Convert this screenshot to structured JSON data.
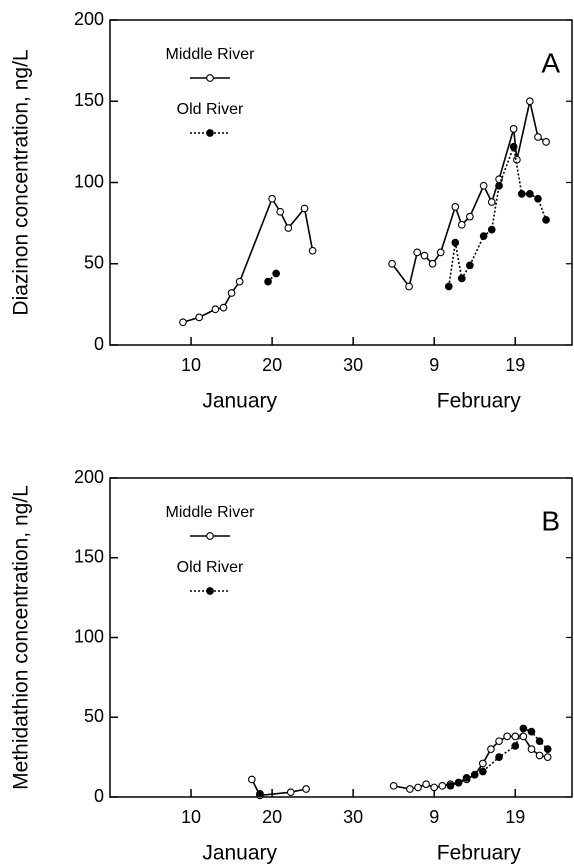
{
  "chart_data": [
    {
      "type": "line",
      "panel_label": "A",
      "ylabel": "Diazinon concentration, ng/L",
      "xlim": [
        0,
        57
      ],
      "ylim": [
        0,
        200
      ],
      "xticks": [
        10,
        20,
        30,
        {
          "value": 40,
          "label": "9"
        },
        {
          "value": 50,
          "label": "19"
        }
      ],
      "yticks": [
        0,
        50,
        100,
        150,
        200
      ],
      "months": [
        {
          "label": "January",
          "start": 1,
          "end": 31
        },
        {
          "label": "February",
          "start": 32,
          "end": 59
        }
      ],
      "legend": "upper-left",
      "series": [
        {
          "name": "Middle River",
          "color": "#000000",
          "line_style": "solid",
          "marker": "open",
          "x": [
            9,
            11,
            13,
            14,
            15,
            16,
            20,
            21,
            22,
            24,
            25,
            null,
            34.8,
            36.9,
            37.9,
            38.8,
            39.8,
            40.8,
            42.6,
            43.4,
            44.4,
            46.1,
            47.1,
            48,
            49.8,
            50.2,
            51.8,
            52.8,
            53.8
          ],
          "values": [
            14,
            17,
            22,
            23,
            32,
            39,
            90,
            82,
            72,
            84,
            58,
            null,
            50,
            36,
            57,
            55,
            50,
            57,
            85,
            74,
            79,
            98,
            88,
            102,
            133,
            114,
            150,
            128,
            125
          ]
        },
        {
          "name": "Old River",
          "color": "#000000",
          "line_style": "dotted",
          "marker": "filled",
          "x": [
            19.5,
            20.5,
            null,
            41.8,
            42.6,
            43.4,
            44.4,
            46.1,
            47.1,
            48,
            49.8,
            50.8,
            51.8,
            52.8,
            53.8
          ],
          "values": [
            39,
            44,
            null,
            36,
            63,
            41,
            49,
            67,
            71,
            98,
            122,
            93,
            93,
            90,
            77
          ]
        }
      ]
    },
    {
      "type": "line",
      "panel_label": "B",
      "ylabel": "Methidathion concentration, ng/L",
      "xlim": [
        0,
        57
      ],
      "ylim": [
        0,
        200
      ],
      "xticks": [
        10,
        20,
        30,
        {
          "value": 40,
          "label": "9"
        },
        {
          "value": 50,
          "label": "19"
        }
      ],
      "yticks": [
        0,
        50,
        100,
        150,
        200
      ],
      "months": [
        {
          "label": "January",
          "start": 1,
          "end": 31
        },
        {
          "label": "February",
          "start": 32,
          "end": 59
        }
      ],
      "legend": "upper-left",
      "series": [
        {
          "name": "Middle River",
          "color": "#000000",
          "line_style": "solid",
          "marker": "open",
          "x": [
            17.5,
            18.5,
            22.3,
            24.2,
            null,
            35,
            37,
            38,
            39,
            40,
            41,
            42,
            43,
            44,
            45,
            46,
            47,
            48,
            49,
            50,
            51,
            52,
            53,
            54
          ],
          "values": [
            11,
            1,
            3,
            5,
            null,
            7,
            5,
            6,
            8,
            6,
            7,
            8,
            9,
            11,
            14,
            21,
            30,
            35,
            38,
            38,
            38,
            30,
            26,
            25
          ]
        },
        {
          "name": "Old River",
          "color": "#000000",
          "line_style": "dotted",
          "marker": "filled",
          "x": [
            18.5,
            null,
            42,
            43,
            44,
            45,
            46,
            48,
            50,
            51,
            52,
            53,
            54
          ],
          "values": [
            2,
            null,
            7,
            9,
            12,
            14,
            16,
            25,
            32,
            43,
            41,
            35,
            30
          ]
        }
      ]
    }
  ]
}
